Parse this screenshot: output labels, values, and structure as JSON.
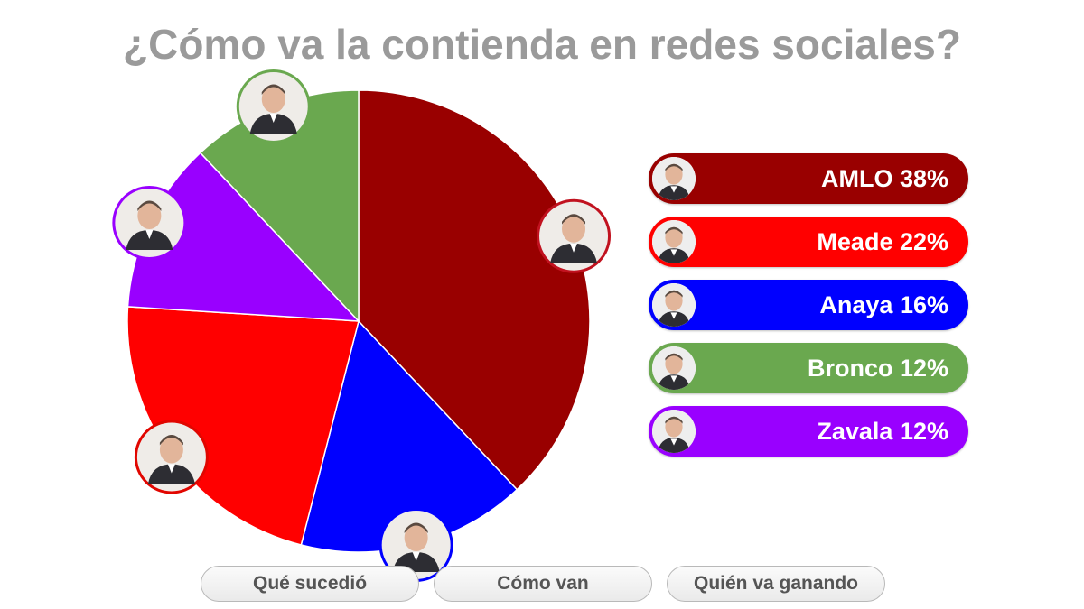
{
  "title": "¿Cómo va la contienda en redes sociales?",
  "chart_data": {
    "type": "pie",
    "slices": [
      {
        "name": "AMLO",
        "label": "AMLO 38%",
        "value": 38,
        "color": "#990000",
        "border": "#c1121f"
      },
      {
        "name": "Anaya",
        "label": "Anaya 16%",
        "value": 16,
        "color": "#0000ff",
        "border": "#0000ff"
      },
      {
        "name": "Meade",
        "label": "Meade 22%",
        "value": 22,
        "color": "#ff0000",
        "border": "#e10600"
      },
      {
        "name": "Zavala",
        "label": "Zavala 12%",
        "value": 12,
        "color": "#9900ff",
        "border": "#9900ff"
      },
      {
        "name": "Bronco",
        "label": "Bronco 12%",
        "value": 12,
        "color": "#6aa84f",
        "border": "#6aa84f"
      }
    ],
    "legend_order": [
      "AMLO",
      "Meade",
      "Anaya",
      "Bronco",
      "Zavala"
    ],
    "legend_placement": "right"
  },
  "buttons": [
    "Qué sucedió",
    "Cómo van",
    "Quién va ganando"
  ],
  "icons": [
    "candidate-photo-icon"
  ]
}
